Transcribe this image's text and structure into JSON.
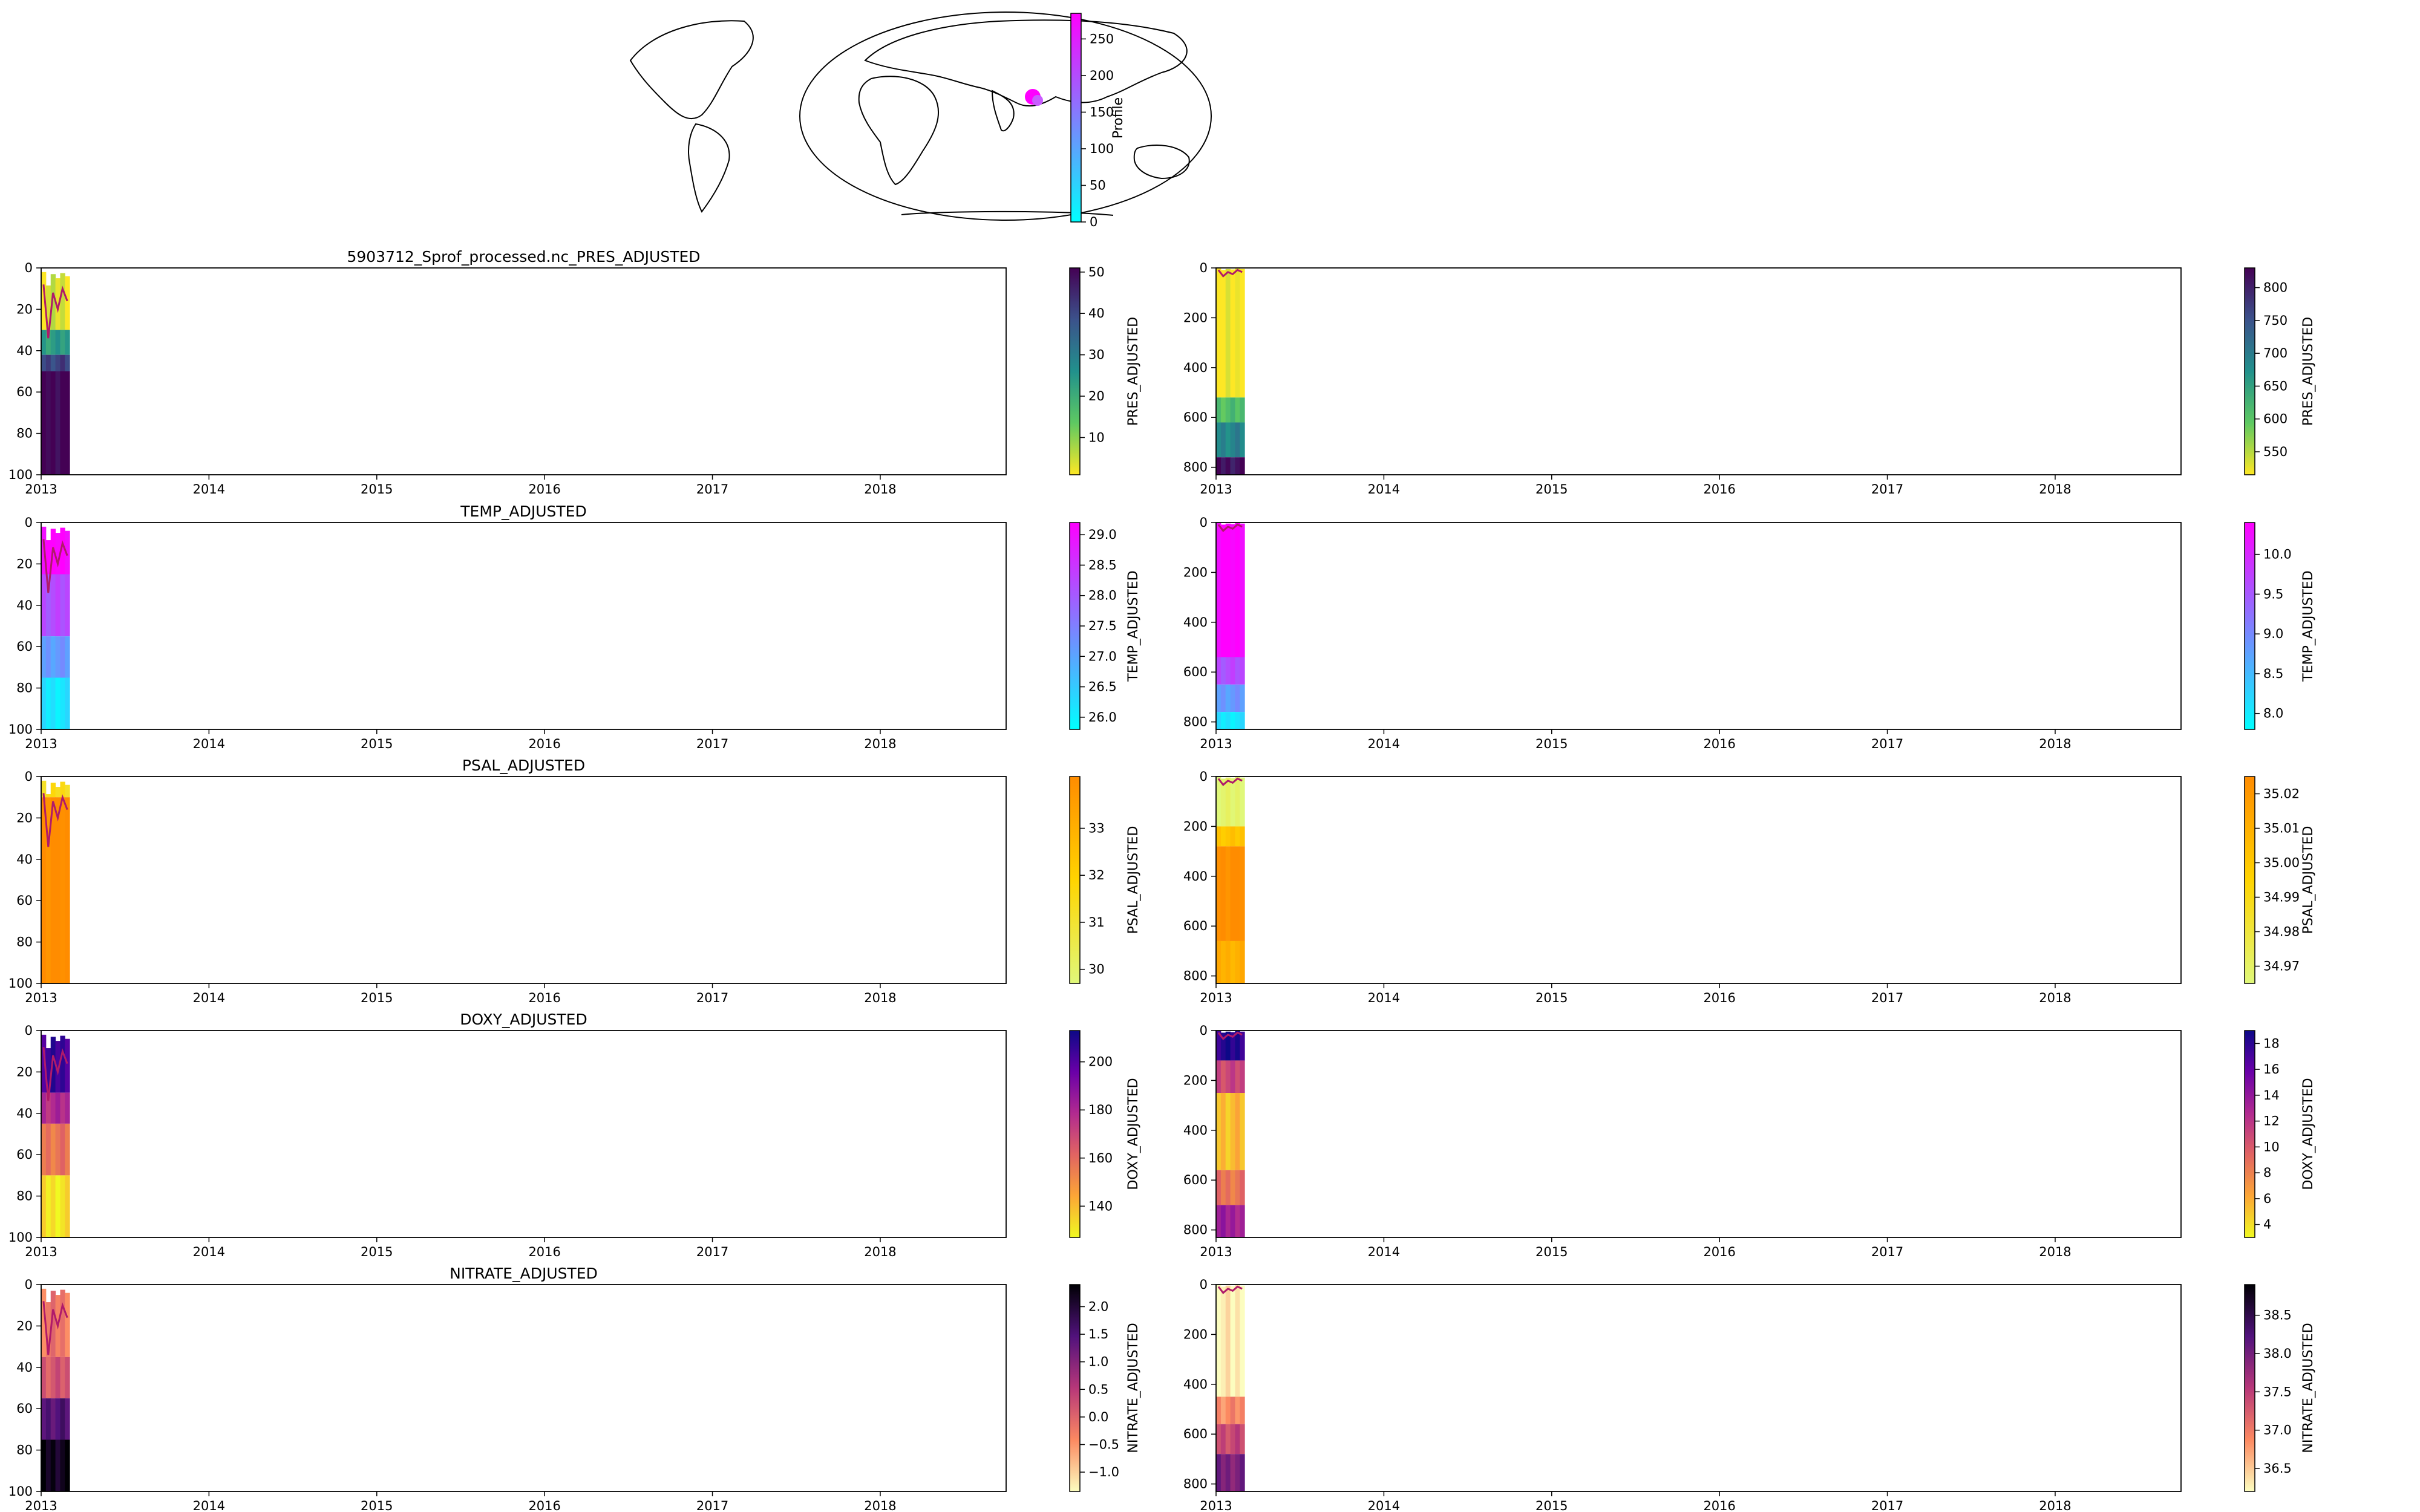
{
  "map": {
    "colorbar": {
      "label": "Profile",
      "ticks": [
        "0",
        "50",
        "100",
        "150",
        "200",
        "250"
      ],
      "tick_values": [
        0,
        50,
        100,
        150,
        200,
        250
      ],
      "range": [
        0,
        285
      ],
      "colors": [
        "#00ffff",
        "#ff00ff"
      ]
    }
  },
  "chart_data": [
    {
      "type": "heatmap",
      "title": "5903712_Sprof_processed.nc_PRES_ADJUSTED",
      "variable": "PRES_ADJUSTED",
      "depth_range": [
        0,
        100
      ],
      "x_ticks": [
        "2013",
        "2014",
        "2015",
        "2016",
        "2017",
        "2018"
      ],
      "y_ticks": [
        "0",
        "20",
        "40",
        "60",
        "80",
        "100"
      ],
      "cbar_ticks": [
        "10",
        "20",
        "30",
        "40",
        "50"
      ],
      "cbar_tick_values": [
        10,
        20,
        30,
        40,
        50
      ],
      "cbar_range": [
        1,
        51
      ],
      "colormap": [
        "#fde725",
        "#5ec962",
        "#21918c",
        "#3b528b",
        "#440154"
      ],
      "bands": [
        {
          "from": 0,
          "to": 30,
          "c": 0.06
        },
        {
          "from": 30,
          "to": 42,
          "c": 0.45
        },
        {
          "from": 42,
          "to": 50,
          "c": 0.8
        },
        {
          "from": 50,
          "to": 100,
          "c": 1.0
        }
      ],
      "mld_line": [
        0.08,
        0.34,
        0.12,
        0.2,
        0.1,
        0.16
      ]
    },
    {
      "type": "heatmap",
      "title": "",
      "variable": "PRES_ADJUSTED",
      "depth_range": [
        0,
        830
      ],
      "x_ticks": [
        "2013",
        "2014",
        "2015",
        "2016",
        "2017",
        "2018"
      ],
      "y_ticks": [
        "0",
        "200",
        "400",
        "600",
        "800"
      ],
      "cbar_ticks": [
        "550",
        "600",
        "650",
        "700",
        "750",
        "800"
      ],
      "cbar_tick_values": [
        550,
        600,
        650,
        700,
        750,
        800
      ],
      "cbar_range": [
        515,
        830
      ],
      "colormap": [
        "#fde725",
        "#5ec962",
        "#21918c",
        "#3b528b",
        "#440154"
      ],
      "bands": [
        {
          "from": 0,
          "to": 520,
          "c": 0.0
        },
        {
          "from": 520,
          "to": 620,
          "c": 0.3
        },
        {
          "from": 620,
          "to": 760,
          "c": 0.55
        },
        {
          "from": 760,
          "to": 830,
          "c": 0.95
        }
      ],
      "mld_line": [
        0.01,
        0.04,
        0.02,
        0.03,
        0.01,
        0.02
      ]
    },
    {
      "type": "heatmap",
      "title": "TEMP_ADJUSTED",
      "variable": "TEMP_ADJUSTED",
      "depth_range": [
        0,
        100
      ],
      "x_ticks": [
        "2013",
        "2014",
        "2015",
        "2016",
        "2017",
        "2018"
      ],
      "y_ticks": [
        "0",
        "20",
        "40",
        "60",
        "80",
        "100"
      ],
      "cbar_ticks": [
        "26.0",
        "26.5",
        "27.0",
        "27.5",
        "28.0",
        "28.5",
        "29.0"
      ],
      "cbar_tick_values": [
        26.0,
        26.5,
        27.0,
        27.5,
        28.0,
        28.5,
        29.0
      ],
      "cbar_range": [
        25.8,
        29.2
      ],
      "colormap": [
        "#00ffff",
        "#ff00ff"
      ],
      "bands": [
        {
          "from": 0,
          "to": 25,
          "c": 1.0
        },
        {
          "from": 25,
          "to": 55,
          "c": 0.7
        },
        {
          "from": 55,
          "to": 75,
          "c": 0.4
        },
        {
          "from": 75,
          "to": 100,
          "c": 0.1
        }
      ],
      "mld_line": [
        0.08,
        0.34,
        0.12,
        0.2,
        0.1,
        0.16
      ]
    },
    {
      "type": "heatmap",
      "title": "",
      "variable": "TEMP_ADJUSTED",
      "depth_range": [
        0,
        830
      ],
      "x_ticks": [
        "2013",
        "2014",
        "2015",
        "2016",
        "2017",
        "2018"
      ],
      "y_ticks": [
        "0",
        "200",
        "400",
        "600",
        "800"
      ],
      "cbar_ticks": [
        "8.0",
        "8.5",
        "9.0",
        "9.5",
        "10.0"
      ],
      "cbar_tick_values": [
        8.0,
        8.5,
        9.0,
        9.5,
        10.0
      ],
      "cbar_range": [
        7.8,
        10.4
      ],
      "colormap": [
        "#00ffff",
        "#ff00ff"
      ],
      "bands": [
        {
          "from": 0,
          "to": 540,
          "c": 1.0
        },
        {
          "from": 540,
          "to": 650,
          "c": 0.7
        },
        {
          "from": 650,
          "to": 760,
          "c": 0.4
        },
        {
          "from": 760,
          "to": 830,
          "c": 0.1
        }
      ],
      "mld_line": [
        0.01,
        0.04,
        0.02,
        0.03,
        0.01,
        0.02
      ]
    },
    {
      "type": "heatmap",
      "title": "PSAL_ADJUSTED",
      "variable": "PSAL_ADJUSTED",
      "depth_range": [
        0,
        100
      ],
      "x_ticks": [
        "2013",
        "2014",
        "2015",
        "2016",
        "2017",
        "2018"
      ],
      "y_ticks": [
        "0",
        "20",
        "40",
        "60",
        "80",
        "100"
      ],
      "cbar_ticks": [
        "30",
        "31",
        "32",
        "33"
      ],
      "cbar_tick_values": [
        30,
        31,
        32,
        33
      ],
      "cbar_range": [
        29.7,
        34.1
      ],
      "colormap": [
        "#e0f87a",
        "#ffd400",
        "#ff8c00"
      ],
      "bands": [
        {
          "from": 0,
          "to": 10,
          "c": 0.4
        },
        {
          "from": 10,
          "to": 100,
          "c": 1.0
        }
      ],
      "mld_line": [
        0.08,
        0.34,
        0.12,
        0.2,
        0.1,
        0.16
      ]
    },
    {
      "type": "heatmap",
      "title": "",
      "variable": "PSAL_ADJUSTED",
      "depth_range": [
        0,
        830
      ],
      "x_ticks": [
        "2013",
        "2014",
        "2015",
        "2016",
        "2017",
        "2018"
      ],
      "y_ticks": [
        "0",
        "200",
        "400",
        "600",
        "800"
      ],
      "cbar_ticks": [
        "34.97",
        "34.98",
        "34.99",
        "35.00",
        "35.01",
        "35.02"
      ],
      "cbar_tick_values": [
        34.97,
        34.98,
        34.99,
        35.0,
        35.01,
        35.02
      ],
      "cbar_range": [
        34.965,
        35.025
      ],
      "colormap": [
        "#e0f87a",
        "#ffd400",
        "#ff8c00"
      ],
      "bands": [
        {
          "from": 0,
          "to": 200,
          "c": 0.05
        },
        {
          "from": 200,
          "to": 280,
          "c": 0.6
        },
        {
          "from": 280,
          "to": 660,
          "c": 1.0
        },
        {
          "from": 660,
          "to": 830,
          "c": 0.75
        }
      ],
      "mld_line": [
        0.01,
        0.04,
        0.02,
        0.03,
        0.01,
        0.02
      ]
    },
    {
      "type": "heatmap",
      "title": "DOXY_ADJUSTED",
      "variable": "DOXY_ADJUSTED",
      "depth_range": [
        0,
        100
      ],
      "x_ticks": [
        "2013",
        "2014",
        "2015",
        "2016",
        "2017",
        "2018"
      ],
      "y_ticks": [
        "0",
        "20",
        "40",
        "60",
        "80",
        "100"
      ],
      "cbar_ticks": [
        "140",
        "160",
        "180",
        "200"
      ],
      "cbar_tick_values": [
        140,
        160,
        180,
        200
      ],
      "cbar_range": [
        127,
        213
      ],
      "colormap": [
        "#f0f921",
        "#fca636",
        "#e16462",
        "#b12a90",
        "#6a00a8",
        "#0d0887"
      ],
      "bands": [
        {
          "from": 0,
          "to": 30,
          "c": 0.9
        },
        {
          "from": 30,
          "to": 45,
          "c": 0.6
        },
        {
          "from": 45,
          "to": 70,
          "c": 0.35
        },
        {
          "from": 70,
          "to": 100,
          "c": 0.05
        }
      ],
      "mld_line": [
        0.08,
        0.34,
        0.12,
        0.2,
        0.1,
        0.16
      ]
    },
    {
      "type": "heatmap",
      "title": "",
      "variable": "DOXY_ADJUSTED",
      "depth_range": [
        0,
        830
      ],
      "x_ticks": [
        "2013",
        "2014",
        "2015",
        "2016",
        "2017",
        "2018"
      ],
      "y_ticks": [
        "0",
        "200",
        "400",
        "600",
        "800"
      ],
      "cbar_ticks": [
        "4",
        "6",
        "8",
        "10",
        "12",
        "14",
        "16",
        "18"
      ],
      "cbar_tick_values": [
        4,
        6,
        8,
        10,
        12,
        14,
        16,
        18
      ],
      "cbar_range": [
        3,
        19
      ],
      "colormap": [
        "#f0f921",
        "#fca636",
        "#e16462",
        "#b12a90",
        "#6a00a8",
        "#0d0887"
      ],
      "bands": [
        {
          "from": 0,
          "to": 120,
          "c": 0.95
        },
        {
          "from": 120,
          "to": 250,
          "c": 0.5
        },
        {
          "from": 250,
          "to": 560,
          "c": 0.15
        },
        {
          "from": 560,
          "to": 700,
          "c": 0.35
        },
        {
          "from": 700,
          "to": 830,
          "c": 0.65
        }
      ],
      "mld_line": [
        0.01,
        0.04,
        0.02,
        0.03,
        0.01,
        0.02
      ]
    },
    {
      "type": "heatmap",
      "title": "NITRATE_ADJUSTED",
      "variable": "NITRATE_ADJUSTED",
      "depth_range": [
        0,
        100
      ],
      "x_ticks": [
        "2013",
        "2014",
        "2015",
        "2016",
        "2017",
        "2018"
      ],
      "y_ticks": [
        "0",
        "20",
        "40",
        "60",
        "80",
        "100"
      ],
      "cbar_ticks": [
        "−1.0",
        "−0.5",
        "0.0",
        "0.5",
        "1.0",
        "1.5",
        "2.0"
      ],
      "cbar_tick_values": [
        -1.0,
        -0.5,
        0.0,
        0.5,
        1.0,
        1.5,
        2.0
      ],
      "cbar_range": [
        -1.35,
        2.4
      ],
      "colormap": [
        "#fcfdbf",
        "#fc8961",
        "#b73779",
        "#51127c",
        "#000004"
      ],
      "bands": [
        {
          "from": 0,
          "to": 35,
          "c": 0.3
        },
        {
          "from": 35,
          "to": 55,
          "c": 0.4
        },
        {
          "from": 55,
          "to": 75,
          "c": 0.75
        },
        {
          "from": 75,
          "to": 100,
          "c": 0.95
        }
      ],
      "mld_line": [
        0.08,
        0.34,
        0.12,
        0.2,
        0.1,
        0.16
      ]
    },
    {
      "type": "heatmap",
      "title": "",
      "variable": "NITRATE_ADJUSTED",
      "depth_range": [
        0,
        830
      ],
      "x_ticks": [
        "2013",
        "2014",
        "2015",
        "2016",
        "2017",
        "2018"
      ],
      "y_ticks": [
        "0",
        "200",
        "400",
        "600",
        "800"
      ],
      "cbar_ticks": [
        "36.5",
        "37.0",
        "37.5",
        "38.0",
        "38.5"
      ],
      "cbar_tick_values": [
        36.5,
        37.0,
        37.5,
        38.0,
        38.5
      ],
      "cbar_range": [
        36.2,
        38.9
      ],
      "colormap": [
        "#fcfdbf",
        "#fc8961",
        "#b73779",
        "#51127c",
        "#000004"
      ],
      "bands": [
        {
          "from": 0,
          "to": 450,
          "c": 0.03
        },
        {
          "from": 450,
          "to": 560,
          "c": 0.25
        },
        {
          "from": 560,
          "to": 680,
          "c": 0.45
        },
        {
          "from": 680,
          "to": 830,
          "c": 0.65
        }
      ],
      "mld_line": [
        0.01,
        0.04,
        0.02,
        0.03,
        0.01,
        0.02
      ]
    }
  ]
}
